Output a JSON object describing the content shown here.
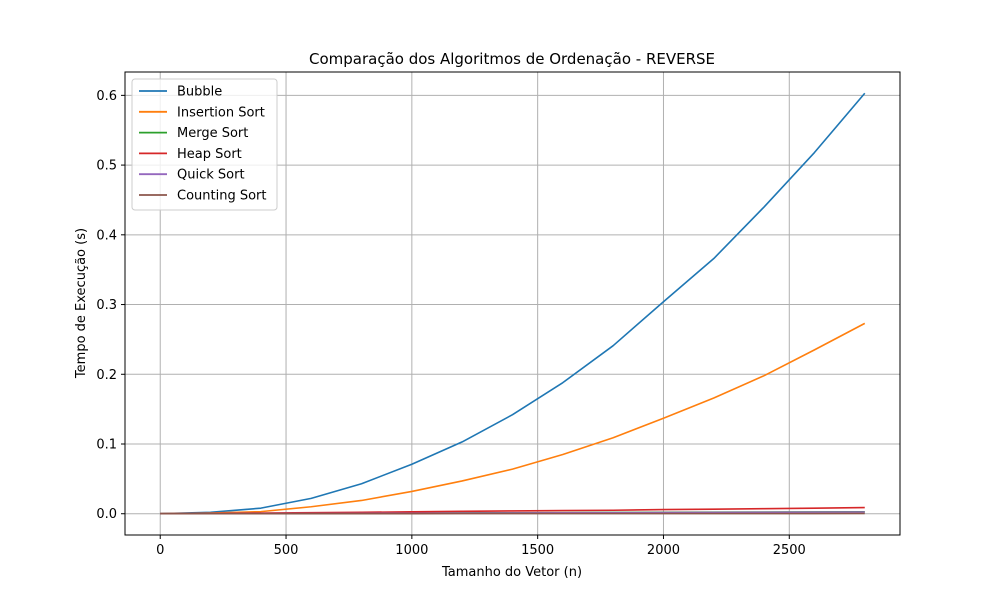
{
  "chart_data": {
    "type": "line",
    "title": "Comparação dos Algoritmos de Ordenação - REVERSE",
    "xlabel": "Tamanho do Vetor (n)",
    "ylabel": "Tempo de Execução (s)",
    "xlim": [
      -140,
      2940
    ],
    "ylim": [
      -0.0305,
      0.6335
    ],
    "xticks": [
      0,
      500,
      1000,
      1500,
      2000,
      2500
    ],
    "yticks": [
      0.0,
      0.1,
      0.2,
      0.3,
      0.4,
      0.5,
      0.6
    ],
    "xtick_labels": [
      "0",
      "500",
      "1000",
      "1500",
      "2000",
      "2500"
    ],
    "ytick_labels": [
      "0.0",
      "0.1",
      "0.2",
      "0.3",
      "0.4",
      "0.5",
      "0.6"
    ],
    "grid": true,
    "legend_position": "top-left",
    "x": [
      0,
      200,
      400,
      600,
      800,
      1000,
      1200,
      1400,
      1600,
      1800,
      2000,
      2200,
      2400,
      2600,
      2800
    ],
    "series": [
      {
        "name": "Bubble",
        "color": "#1f77b4",
        "values": [
          0.0,
          0.002,
          0.008,
          0.022,
          0.043,
          0.071,
          0.103,
          0.142,
          0.188,
          0.241,
          0.304,
          0.366,
          0.44,
          0.518,
          0.603
        ]
      },
      {
        "name": "Insertion Sort",
        "color": "#ff7f0e",
        "values": [
          0.0,
          0.001,
          0.003,
          0.01,
          0.019,
          0.032,
          0.047,
          0.064,
          0.085,
          0.109,
          0.137,
          0.166,
          0.198,
          0.235,
          0.273
        ]
      },
      {
        "name": "Merge Sort",
        "color": "#2ca02c",
        "values": [
          0.0,
          0.0002,
          0.0004,
          0.0006,
          0.0008,
          0.001,
          0.0012,
          0.0014,
          0.0016,
          0.0018,
          0.002,
          0.0022,
          0.0024,
          0.0026,
          0.0028
        ]
      },
      {
        "name": "Heap Sort",
        "color": "#d62728",
        "values": [
          0.0,
          0.0005,
          0.001,
          0.0015,
          0.002,
          0.0028,
          0.0035,
          0.004,
          0.0045,
          0.005,
          0.006,
          0.0065,
          0.0072,
          0.008,
          0.0088
        ]
      },
      {
        "name": "Quick Sort",
        "color": "#9467bd",
        "values": [
          0.0,
          0.0001,
          0.0002,
          0.0003,
          0.0005,
          0.0007,
          0.0009,
          0.0011,
          0.0013,
          0.0015,
          0.0017,
          0.0019,
          0.0021,
          0.0023,
          0.0025
        ]
      },
      {
        "name": "Counting Sort",
        "color": "#8c564b",
        "values": [
          0.0,
          0.0,
          0.0001,
          0.0001,
          0.0001,
          0.0001,
          0.0002,
          0.0002,
          0.0002,
          0.0002,
          0.0003,
          0.0003,
          0.0003,
          0.0003,
          0.0004
        ]
      }
    ]
  }
}
